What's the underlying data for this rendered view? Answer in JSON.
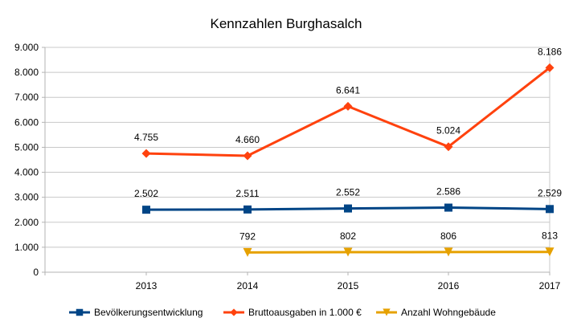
{
  "chart_data": {
    "type": "line",
    "title": "Kennzahlen Burghasalch",
    "xlabel": "",
    "ylabel": "",
    "categories": [
      "2013",
      "2014",
      "2015",
      "2016",
      "2017"
    ],
    "ylim": [
      0,
      9000
    ],
    "yticks": [
      0,
      1000,
      2000,
      3000,
      4000,
      5000,
      6000,
      7000,
      8000,
      9000
    ],
    "ytick_labels": [
      "0",
      "1.000",
      "2.000",
      "3.000",
      "4.000",
      "5.000",
      "6.000",
      "7.000",
      "8.000",
      "9.000"
    ],
    "grid": true,
    "legend_position": "bottom",
    "series": [
      {
        "name": "Bevölkerungsentwicklung",
        "color": "#004586",
        "marker": "square",
        "values": [
          2502,
          2511,
          2552,
          2586,
          2529
        ],
        "labels": [
          "2.502",
          "2.511",
          "2.552",
          "2.586",
          "2.529"
        ]
      },
      {
        "name": "Bruttoausgaben in 1.000 €",
        "color": "#ff420e",
        "marker": "diamond",
        "values": [
          4755,
          4660,
          6641,
          5024,
          8186
        ],
        "labels": [
          "4.755",
          "4.660",
          "6.641",
          "5.024",
          "8.186"
        ]
      },
      {
        "name": "Anzahl Wohngebäude",
        "color": "#e6a100",
        "marker": "triangle-down",
        "values": [
          null,
          792,
          802,
          806,
          813
        ],
        "labels": [
          null,
          "792",
          "802",
          "806",
          "813"
        ]
      }
    ]
  }
}
